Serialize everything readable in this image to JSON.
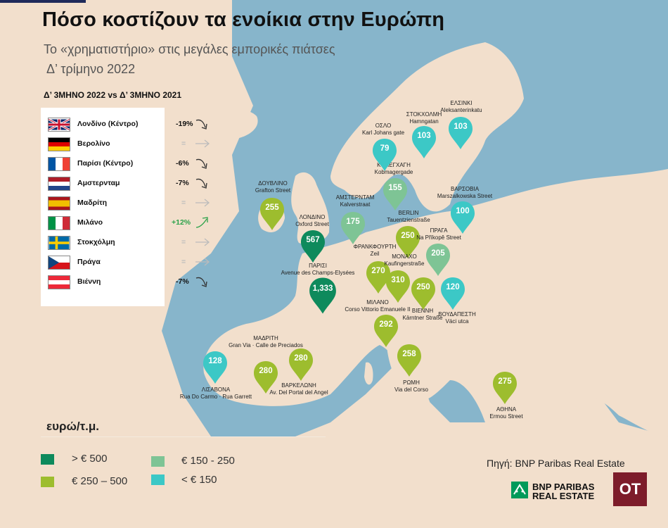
{
  "header": {
    "title": "Πόσο κοστίζουν τα ενοίκια στην Ευρώπη",
    "subtitle_line1": "Το «χρηματιστήριο» στις μεγάλες εμπορικές πιάτσες",
    "subtitle_line2": "Δ’ τρίμηνο 2022",
    "comparison": "Δ’ 3ΜΗΝΟ 2022 vs Δ’ 3ΜΗΝΟ 2021"
  },
  "changes": [
    {
      "flag": "uk-flag",
      "city": "Λονδίνο (Κέντρο)",
      "change": "-19%",
      "trend": "down"
    },
    {
      "flag": "germany-flag",
      "city": "Βερολίνο",
      "change": "=",
      "trend": "flat"
    },
    {
      "flag": "france-flag",
      "city": "Παρίσι (Κέντρο)",
      "change": "-6%",
      "trend": "down"
    },
    {
      "flag": "netherlands-flag",
      "city": "Αμστερνταμ",
      "change": "-7%",
      "trend": "down"
    },
    {
      "flag": "spain-flag",
      "city": "Μαδρίτη",
      "change": "=",
      "trend": "flat"
    },
    {
      "flag": "italy-flag",
      "city": "Μιλάνο",
      "change": "+12%",
      "trend": "up"
    },
    {
      "flag": "sweden-flag",
      "city": "Στοκχόλμη",
      "change": "=",
      "trend": "flat"
    },
    {
      "flag": "czech-flag",
      "city": "Πράγα",
      "change": "=",
      "trend": "flat"
    },
    {
      "flag": "austria-flag",
      "city": "Βιέννη",
      "change": "-7%",
      "trend": "down"
    }
  ],
  "markers": [
    {
      "value": "1,333",
      "tier": "t1",
      "city": "ΠΑΡΙΣΙ",
      "street": "Avenue des Champs-Elysées"
    },
    {
      "value": "567",
      "tier": "t1",
      "city": "ΛΟΝΔΙΝΟ",
      "street": "Oxford Street"
    },
    {
      "value": "255",
      "tier": "t2",
      "city": "ΔΟΥΒΛΙΝΟ",
      "street": "Grafton Street"
    },
    {
      "value": "175",
      "tier": "t3",
      "city": "ΑΜΣΤΕΡΝΤΑΜ",
      "street": "Kalverstraat"
    },
    {
      "value": "155",
      "tier": "t3",
      "city": "ΚΟΠΕΓΧΑΓΗ",
      "street": "Kobmagergade"
    },
    {
      "value": "79",
      "tier": "t4",
      "city": "ΟΣΛΟ",
      "street": "Karl Johans gate"
    },
    {
      "value": "103",
      "tier": "t4",
      "city": "ΣΤΟΚΧΟΛΜΗ",
      "street": "Hamngatan"
    },
    {
      "value": "103",
      "tier": "t4",
      "city": "ΕΛΣΙΝΚΙ",
      "street": "Aleksanterinkatu"
    },
    {
      "value": "250",
      "tier": "t2",
      "city": "BERLIN",
      "street": "Tauentzienstraße"
    },
    {
      "value": "100",
      "tier": "t4",
      "city": "ΒΑΡΣΟΒΙΑ",
      "street": "Marszalkowska Street"
    },
    {
      "value": "205",
      "tier": "t3",
      "city": "ΠΡΑΓΑ",
      "street": "Na Příkopě Street"
    },
    {
      "value": "270",
      "tier": "t2",
      "city": "ΦΡΑΝΚΦΟΥΡΤΗ",
      "street": "Zeil"
    },
    {
      "value": "310",
      "tier": "t2",
      "city": "ΜΟΝΑΧΟ",
      "street": "Kaufingerstraße"
    },
    {
      "value": "250",
      "tier": "t2",
      "city": "ΒΙΕΝΝΗ",
      "street": "Kärntner Straße"
    },
    {
      "value": "120",
      "tier": "t4",
      "city": "ΒΟΥΔΑΠΕΣΤΗ",
      "street": "Váci utca"
    },
    {
      "value": "292",
      "tier": "t2",
      "city": "ΜΙΛΑΝΟ",
      "street": "Corso Vittorio Emanuele II"
    },
    {
      "value": "258",
      "tier": "t2",
      "city": "ΡΩΜΗ",
      "street": "Via del Corso"
    },
    {
      "value": "280",
      "tier": "t2",
      "city": "ΜΑΔΡΙΤΗ",
      "street": "Gran Via · Calle de Preciados"
    },
    {
      "value": "280",
      "tier": "t2",
      "city": "ΒΑΡΚΕΛΩΝΗ",
      "street": "Av. Del Portal del Angel"
    },
    {
      "value": "128",
      "tier": "t4",
      "city": "ΛΙΣΑΒΟΝΑ",
      "street": "Rua Do Carmo · Rua Garrett"
    },
    {
      "value": "275",
      "tier": "t2",
      "city": "ΑΘΗΝΑ",
      "street": "Ermou Street"
    }
  ],
  "legend": {
    "unit": "ευρώ/τ.μ.",
    "items": [
      {
        "label": "> € 500",
        "color": "#0e8a5c"
      },
      {
        "label": "€ 250 – 500",
        "color": "#9dbd2e"
      },
      {
        "label": "€ 150 - 250",
        "color": "#7ec495"
      },
      {
        "label": "< € 150",
        "color": "#3cc8c6"
      }
    ]
  },
  "colors": {
    "t1": "#0e8a5c",
    "t2": "#9dbd2e",
    "t3": "#7ec495",
    "t4": "#3cc8c6"
  },
  "footer": {
    "source": "Πηγή: BNP Paribas Real Estate",
    "bnp_line1": "BNP PARIBAS",
    "bnp_line2": "REAL ESTATE",
    "ot": "OT"
  }
}
